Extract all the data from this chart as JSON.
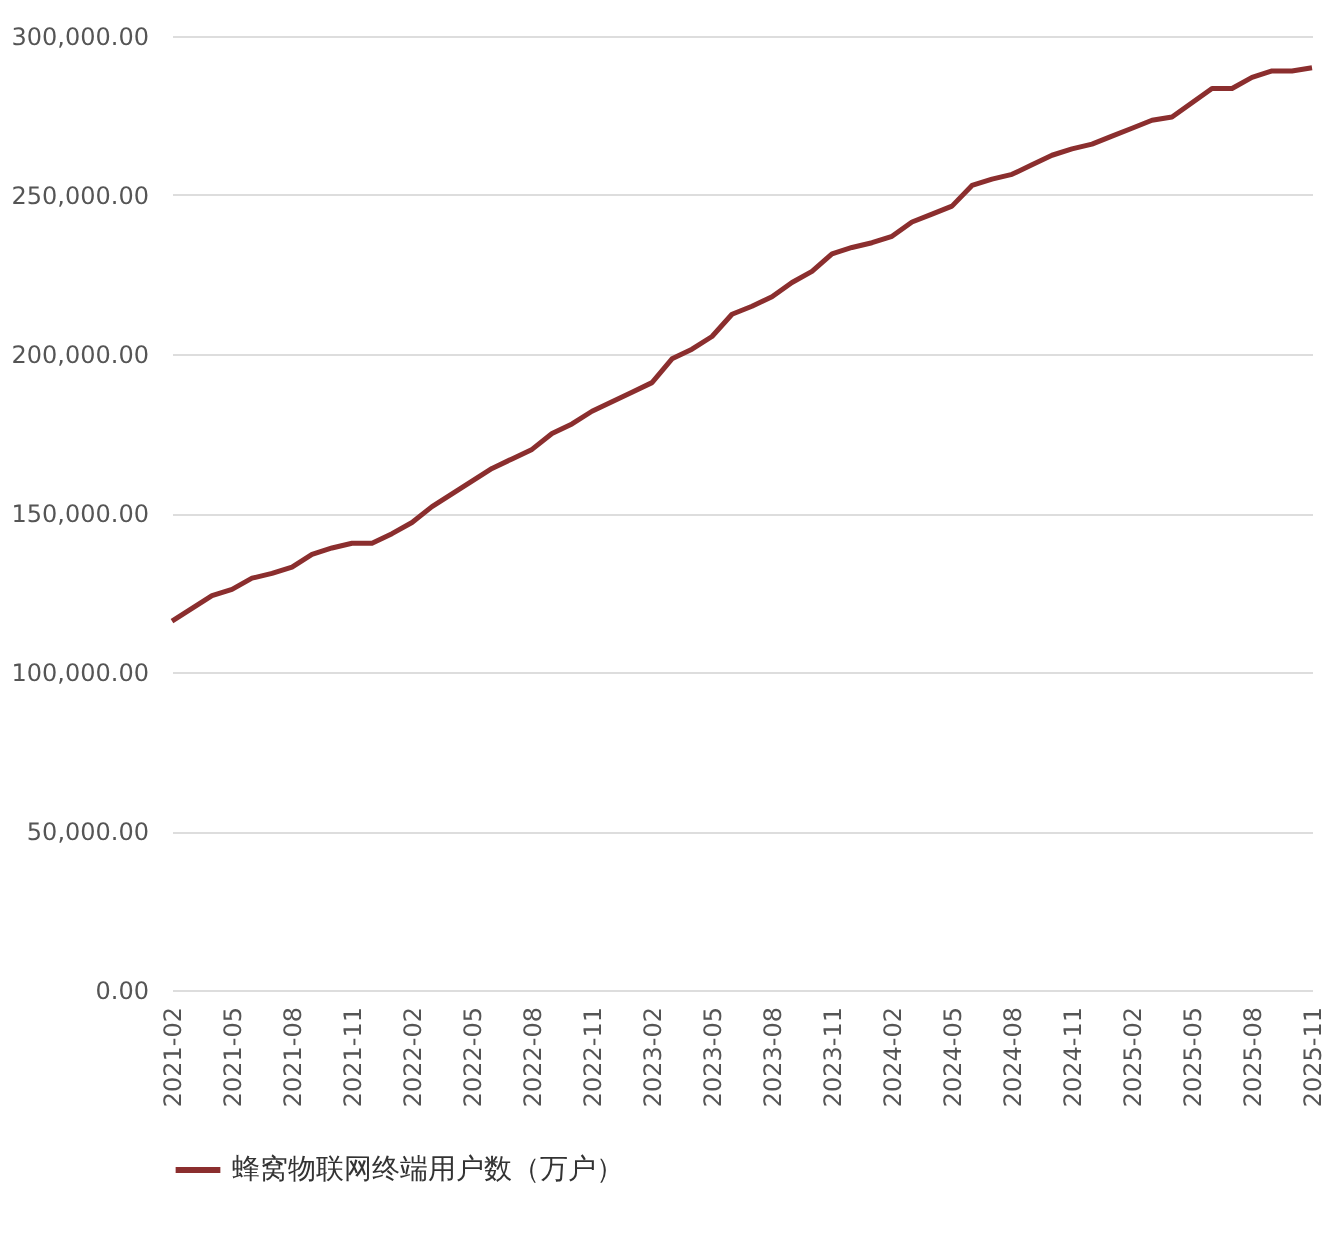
{
  "chart_data": {
    "type": "line",
    "categories": [
      "2021-02",
      null,
      null,
      "2021-05",
      null,
      null,
      "2021-08",
      null,
      null,
      "2021-11",
      null,
      null,
      "2022-02",
      null,
      null,
      "2022-05",
      null,
      null,
      "2022-08",
      null,
      null,
      "2022-11",
      null,
      null,
      "2023-02",
      null,
      null,
      "2023-05",
      null,
      null,
      "2023-08",
      null,
      null,
      "2023-11",
      null,
      null,
      "2024-02",
      null,
      null,
      "2024-05",
      null,
      null,
      "2024-08",
      null,
      null,
      "2024-11",
      null,
      null,
      "2025-02",
      null,
      null,
      "2025-05",
      null,
      null,
      "2025-08",
      null,
      null,
      "2025-11"
    ],
    "series": [
      {
        "name": "蜂窝物联网终端用户数（万户）",
        "color": "#8b2e2e",
        "values": [
          116000,
          120000,
          124000,
          126000,
          129500,
          131000,
          133000,
          137000,
          139000,
          140500,
          140500,
          143500,
          147000,
          152000,
          156000,
          160000,
          164000,
          167000,
          170000,
          175000,
          178000,
          182000,
          185000,
          188000,
          191000,
          198500,
          201500,
          205500,
          212500,
          215000,
          218000,
          222500,
          226000,
          231500,
          233500,
          235000,
          237000,
          241500,
          244000,
          246500,
          253000,
          255000,
          256500,
          259500,
          262500,
          264500,
          266000,
          268500,
          271000,
          273500,
          274500,
          279000,
          283500,
          283500,
          287000,
          289000,
          289000,
          290000
        ]
      }
    ],
    "ylim": [
      0,
      300000
    ],
    "yticks": [
      {
        "value": 0,
        "label": "0.00"
      },
      {
        "value": 50000,
        "label": "50,000.00"
      },
      {
        "value": 100000,
        "label": "100,000.00"
      },
      {
        "value": 150000,
        "label": "150,000.00"
      },
      {
        "value": 200000,
        "label": "200,000.00"
      },
      {
        "value": 250000,
        "label": "250,000.00"
      },
      {
        "value": 300000,
        "label": "300,000.00"
      }
    ],
    "grid": "y",
    "legend": "bottom",
    "marker": "none",
    "line_style": "solid"
  }
}
